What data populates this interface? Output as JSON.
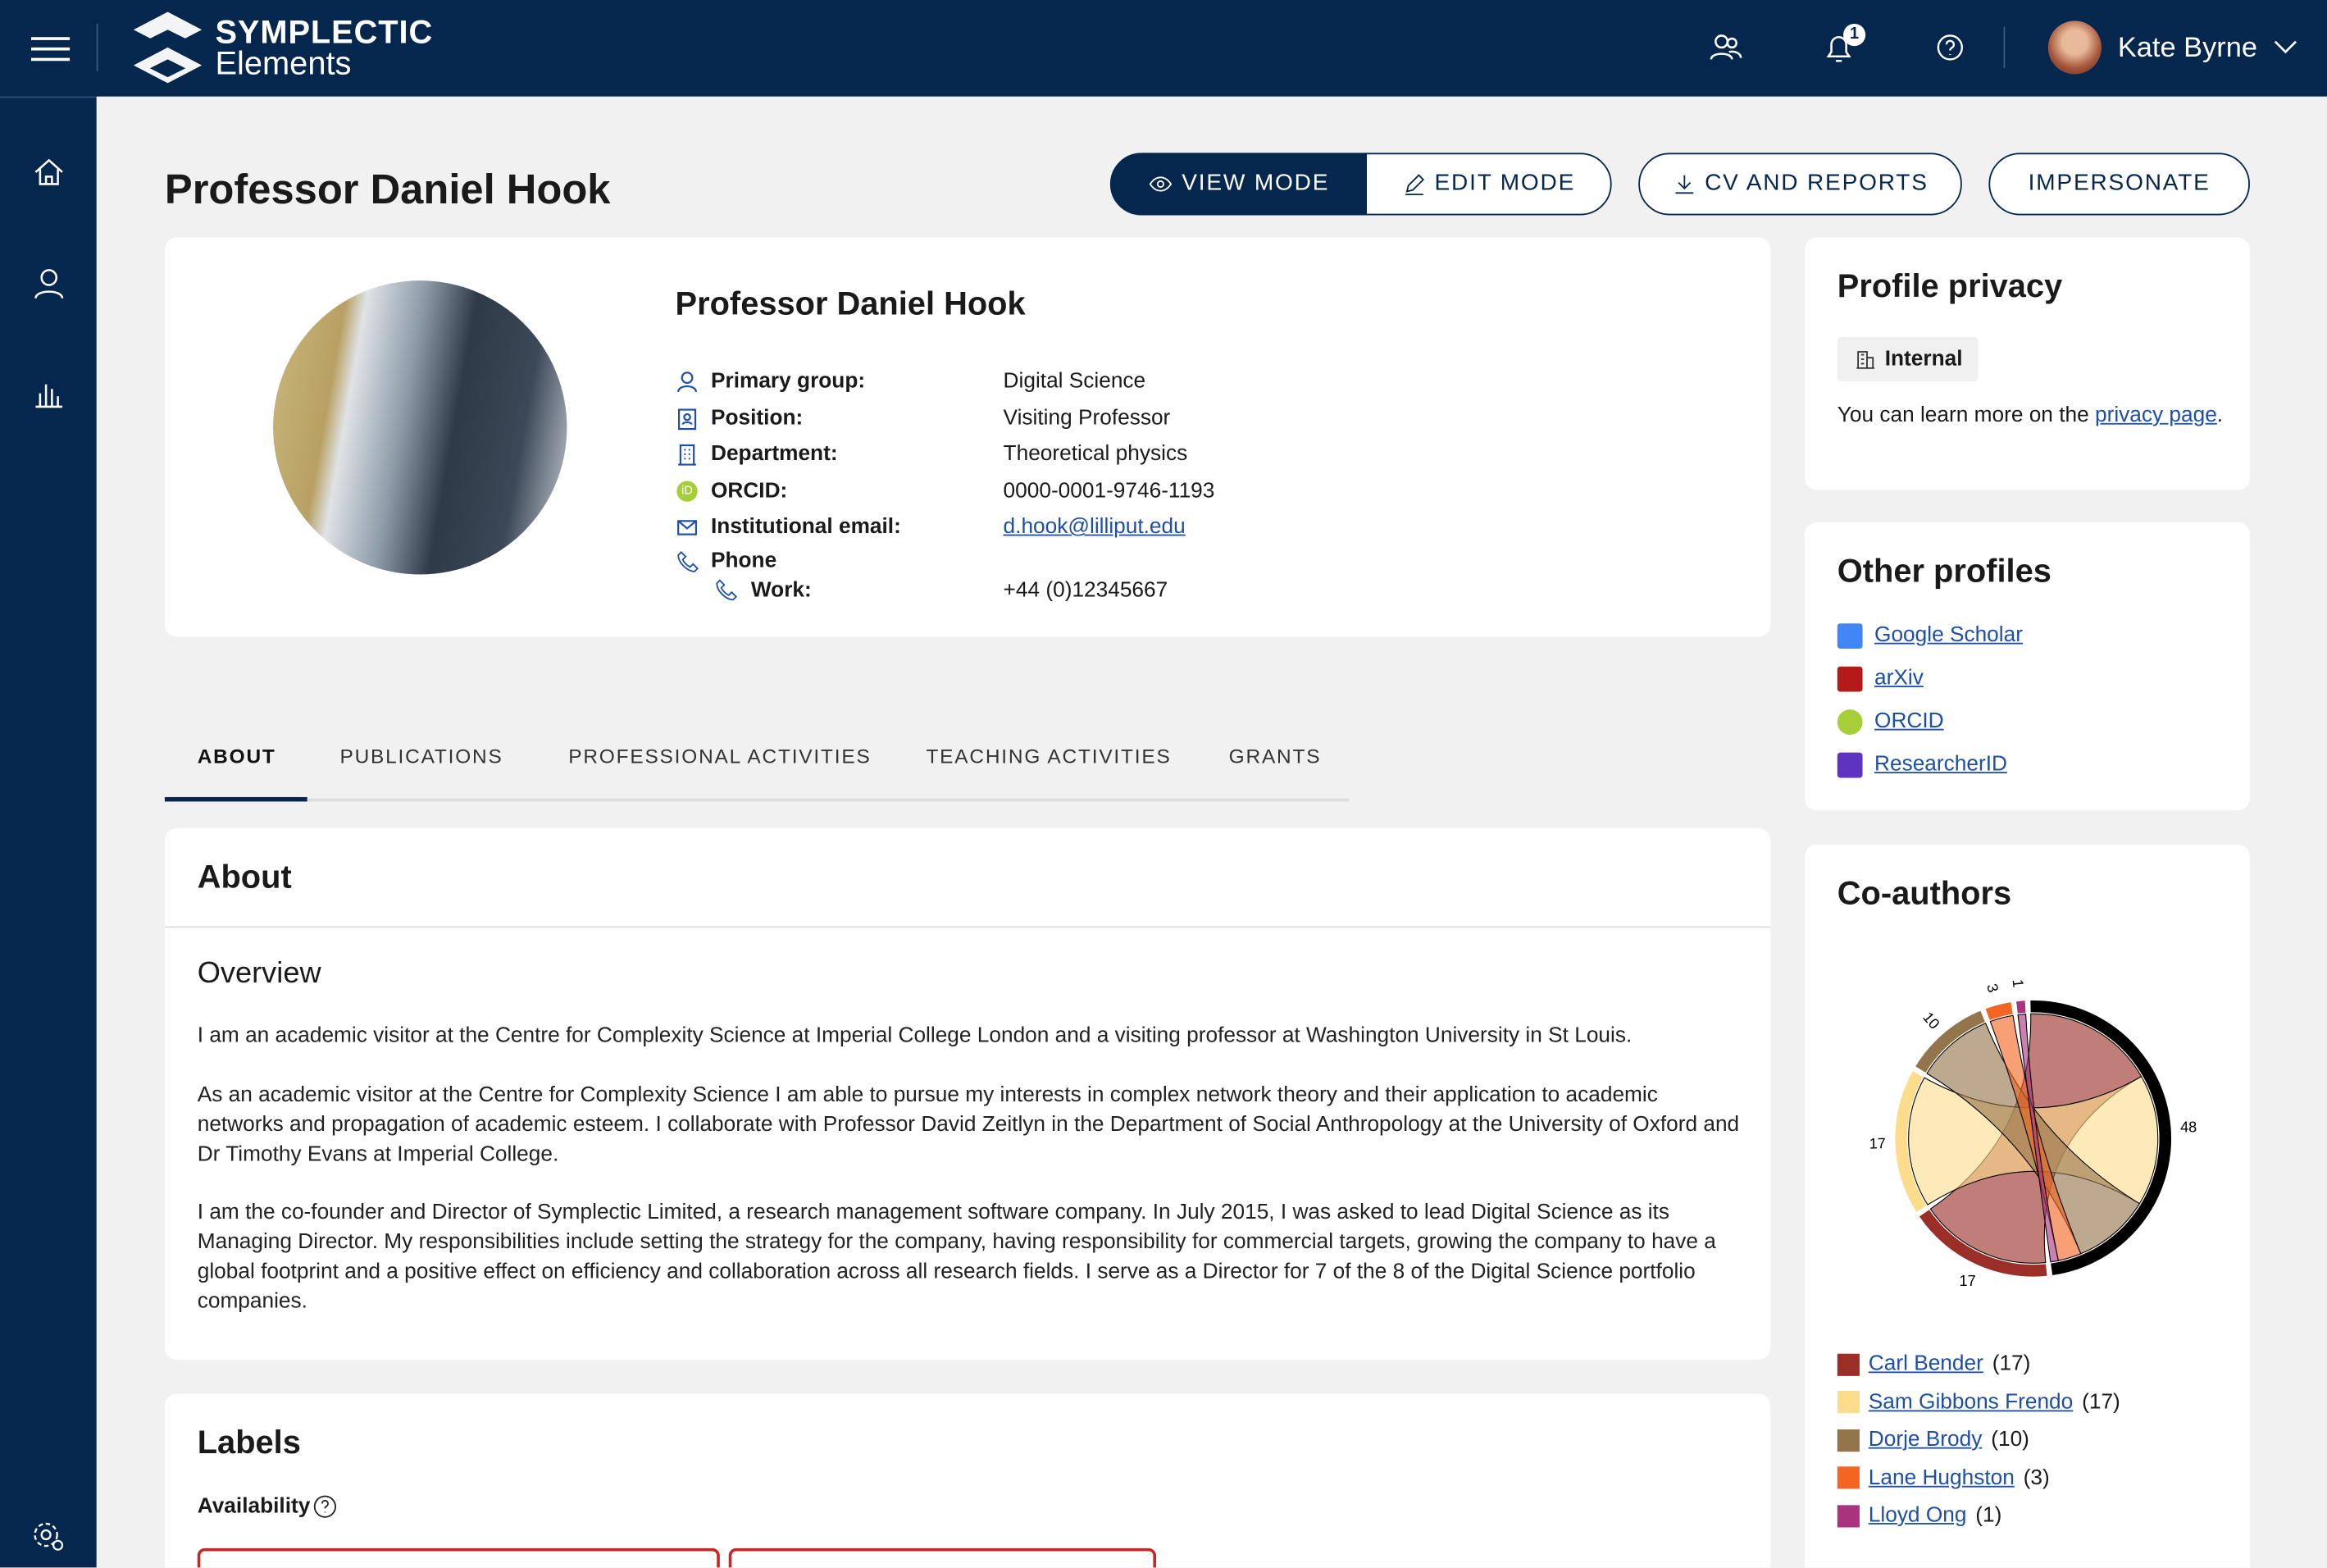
{
  "app": {
    "brand_line1": "SYMPLECTIC",
    "brand_line2": "Elements",
    "notification_count": "1",
    "user_name": "Kate Byrne"
  },
  "sidebar": {
    "items": [
      {
        "icon": "home-icon"
      },
      {
        "icon": "person-icon"
      },
      {
        "icon": "bar-chart-icon"
      },
      {
        "icon": "settings-icon"
      }
    ]
  },
  "header": {
    "title": "Professor Daniel Hook",
    "view_mode": "VIEW MODE",
    "edit_mode": "EDIT MODE",
    "cv_reports": "CV AND REPORTS",
    "impersonate": "IMPERSONATE"
  },
  "profile": {
    "name": "Professor Daniel Hook",
    "fields": [
      {
        "icon": "person-icon",
        "label": "Primary group:",
        "value": "Digital Science"
      },
      {
        "icon": "badge-icon",
        "label": "Position:",
        "value": "Visiting Professor"
      },
      {
        "icon": "building-icon",
        "label": "Department:",
        "value": "Theoretical physics"
      },
      {
        "icon": "orcid-icon",
        "label": "ORCID:",
        "value": "0000-0001-9746-1193"
      },
      {
        "icon": "mail-icon",
        "label": "Institutional email:",
        "value": "d.hook@lilliput.edu"
      }
    ],
    "phone_label": "Phone",
    "work_label": "Work:",
    "work_value": "+44 (0)12345667"
  },
  "tabs": [
    {
      "label": "ABOUT",
      "active": true
    },
    {
      "label": "PUBLICATIONS"
    },
    {
      "label": "PROFESSIONAL ACTIVITIES"
    },
    {
      "label": "TEACHING ACTIVITIES"
    },
    {
      "label": "GRANTS"
    }
  ],
  "about": {
    "title": "About",
    "overview": "Overview",
    "paragraphs": [
      "I am an academic visitor at the Centre for Complexity Science at Imperial College London and a visiting professor at Washington University in St Louis.",
      "As an academic visitor at the Centre for Complexity Science I am able to pursue my interests in complex network theory and their application to academic networks and propagation of academic esteem. I collaborate with Professor David Zeitlyn in the Department of Social Anthropology at the University of Oxford and Dr Timothy Evans at Imperial College.",
      "I am the co-founder and Director of Symplectic Limited, a research management software company. In July 2015, I was asked to lead Digital Science as its Managing Director. My responsibilities include setting the strategy for the company, having responsibility for commercial targets, growing the company to have a global footprint and a positive effect on efficiency and collaboration across all research fields. I serve as a Director for 7 of the 8 of the Digital Science portfolio companies."
    ]
  },
  "labels": {
    "title": "Labels",
    "availability": "Availability"
  },
  "privacy": {
    "title": "Profile privacy",
    "badge": "Internal",
    "text_before": "You can learn more on the ",
    "link": "privacy page",
    "text_after": "."
  },
  "other_profiles": {
    "title": "Other profiles",
    "items": [
      {
        "label": "Google Scholar",
        "color": "#4285f4"
      },
      {
        "label": "arXiv",
        "color": "#b31b1b"
      },
      {
        "label": "ORCID",
        "color": "#a6ce39"
      },
      {
        "label": "ResearcherID",
        "color": "#5e33bf"
      }
    ]
  },
  "coauthors": {
    "title": "Co-authors",
    "items": [
      {
        "name": "Carl Bender",
        "count": "(17)",
        "color": "#9b2f27"
      },
      {
        "name": "Sam Gibbons Frendo",
        "count": "(17)",
        "color": "#fddc8c"
      },
      {
        "name": "Dorje Brody",
        "count": "(10)",
        "color": "#94744a"
      },
      {
        "name": "Lane Hughston",
        "count": "(3)",
        "color": "#f26522"
      },
      {
        "name": "Lloyd Ong",
        "count": "(1)",
        "color": "#a8337e"
      }
    ]
  },
  "chart_data": {
    "type": "chord",
    "self_total": 48,
    "self_color": "#000000",
    "groups": [
      {
        "name": "Carl Bender",
        "value": 17
      },
      {
        "name": "Sam Gibbons Frendo",
        "value": 17
      },
      {
        "name": "Dorje Brody",
        "value": 10
      },
      {
        "name": "Lane Hughston",
        "value": 3
      },
      {
        "name": "Lloyd Ong",
        "value": 1
      }
    ],
    "tick_labels": [
      "48",
      "17",
      "17",
      "10",
      "3",
      "1"
    ]
  }
}
